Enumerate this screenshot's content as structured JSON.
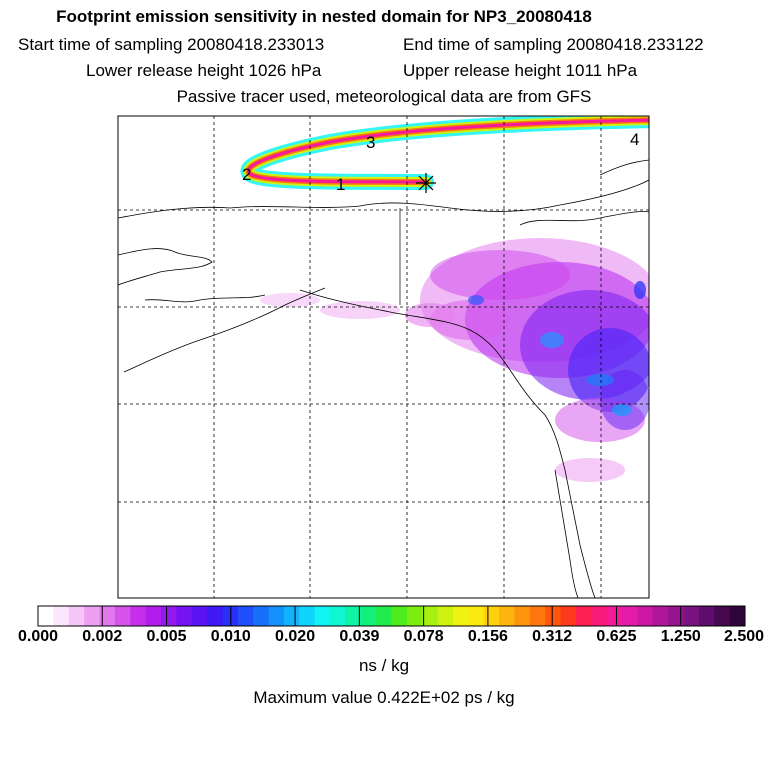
{
  "titles": {
    "line1": "Footprint emission sensitivity in nested domain for NP3_20080418",
    "start_label": "Start time of sampling 20080418.233013",
    "end_label": "End time of sampling 20080418.233122",
    "lower_label": "Lower release height 1026 hPa",
    "upper_label": "Upper release height 1011 hPa",
    "line4": "Passive tracer used, meteorological data are from GFS"
  },
  "trajectory_labels": [
    "1",
    "2",
    "3",
    "4"
  ],
  "receptor_symbol": "*",
  "colorbar": {
    "ticks": [
      "0.000",
      "0.002",
      "0.005",
      "0.010",
      "0.020",
      "0.039",
      "0.078",
      "0.156",
      "0.312",
      "0.625",
      "1.250",
      "2.500"
    ],
    "colors": [
      "#ffffff",
      "#fce6fc",
      "#f5c6f7",
      "#eda0f2",
      "#e27aee",
      "#d653ec",
      "#c730eb",
      "#b21ded",
      "#9218ef",
      "#7414f1",
      "#5a14f3",
      "#3e18f5",
      "#2a2ef7",
      "#1f4ff9",
      "#1870fa",
      "#1492fb",
      "#10b3fc",
      "#0fd5fd",
      "#10f4f6",
      "#10f6d2",
      "#10f3a4",
      "#12f07a",
      "#20ec4a",
      "#4cec1d",
      "#7cee12",
      "#a6f012",
      "#cef211",
      "#f0f211",
      "#faea0f",
      "#fcd20e",
      "#fdb40d",
      "#fd960c",
      "#fd770c",
      "#fd570d",
      "#fd3a1d",
      "#fc2050",
      "#fa1a78",
      "#f41a9a",
      "#e41aa8",
      "#cc18a4",
      "#b0169c",
      "#941490",
      "#7a1282",
      "#5e0e6e",
      "#46084f",
      "#30063a"
    ],
    "unit": "ns / kg",
    "max_value": "Maximum value  0.422E+02 ps / kg"
  }
}
